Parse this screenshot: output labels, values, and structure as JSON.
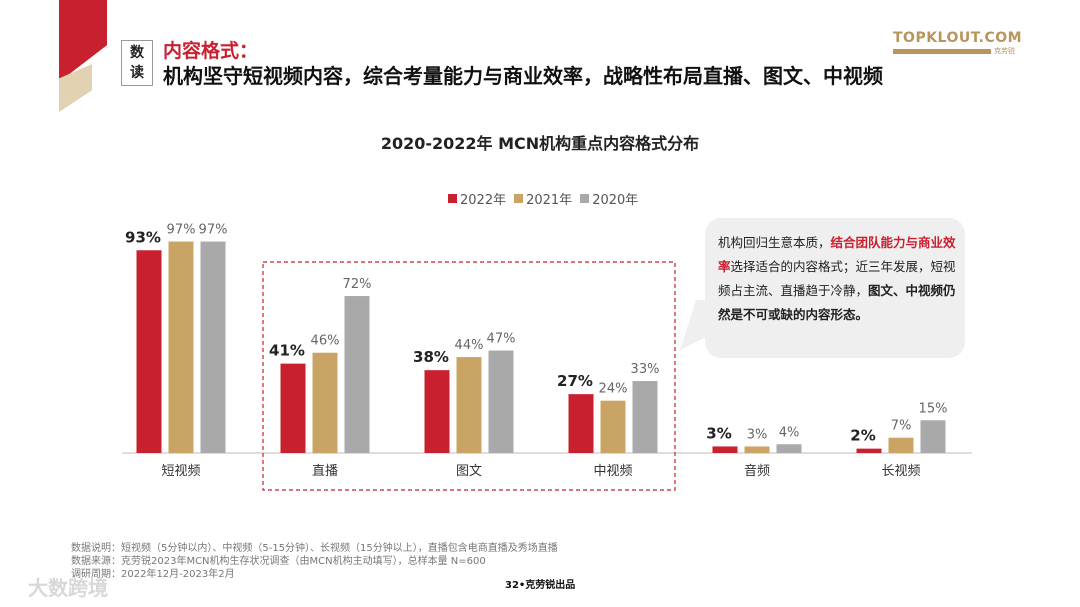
{
  "header": {
    "badge": [
      "数",
      "读"
    ],
    "subtitle": "内容格式：",
    "title": "机构坚守短视频内容，综合考量能力与商业效率，战略性布局直播、图文、中视频",
    "logo": {
      "text": "TOPKLOUT.COM",
      "cn": "克劳锐"
    }
  },
  "chart_data": {
    "type": "bar",
    "title": "2020-2022年 MCN机构重点内容格式分布",
    "categories": [
      "短视频",
      "直播",
      "图文",
      "中视频",
      "音频",
      "长视频"
    ],
    "series": [
      {
        "name": "2022年",
        "color": "#c8202f",
        "values": [
          93,
          41,
          38,
          27,
          3,
          2
        ]
      },
      {
        "name": "2021年",
        "color": "#c9a465",
        "values": [
          97,
          46,
          44,
          24,
          3,
          7
        ]
      },
      {
        "name": "2020年",
        "color": "#a9a9a9",
        "values": [
          97,
          72,
          47,
          33,
          4,
          15
        ]
      }
    ],
    "unit": "%",
    "ylim": [
      0,
      100
    ],
    "grid": false,
    "legend_position": "top-center",
    "highlighted_categories": [
      "直播",
      "图文",
      "中视频"
    ]
  },
  "callout": {
    "parts": [
      {
        "text": "机构回归生意本质，",
        "style": "normal"
      },
      {
        "text": "结合团队能力与商业效率",
        "style": "red"
      },
      {
        "text": "选择适合的内容格式；",
        "style": "normal"
      },
      {
        "text": "近三年发展，短视频占主流、直播趋于冷静，",
        "style": "normal"
      },
      {
        "text": "图文、中视频仍然是不可或缺的内容形态。",
        "style": "bold"
      }
    ]
  },
  "footer": {
    "notes": [
      "数据说明：短视频（5分钟以内）、中视频（5-15分钟）、长视频（15分钟以上），直播包含电商直播及秀场直播",
      "数据来源：克劳锐2023年MCN机构生存状况调查（由MCN机构主动填写），总样本量 N=600",
      "调研周期：2022年12月-2023年2月"
    ],
    "page": "32•克劳锐出品",
    "watermark": "大数跨境"
  }
}
